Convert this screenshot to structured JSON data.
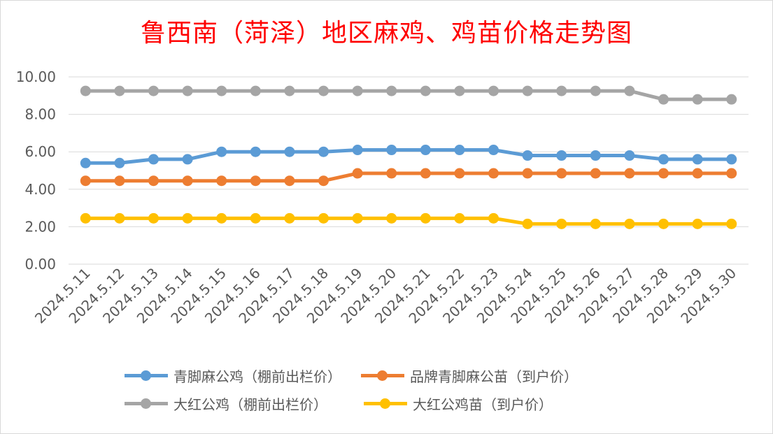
{
  "title": "鲁西南（菏泽）地区麻鸡、鸡苗价格走势图",
  "chart_data": {
    "type": "line",
    "title": "鲁西南（菏泽）地区麻鸡、鸡苗价格走势图",
    "xlabel": "",
    "ylabel": "",
    "ylim": [
      0,
      10
    ],
    "yticks": [
      "0.00",
      "2.00",
      "4.00",
      "6.00",
      "8.00",
      "10.00"
    ],
    "grid": true,
    "legend_position": "bottom",
    "x": [
      "2024.5.11",
      "2024.5.12",
      "2024.5.13",
      "2024.5.14",
      "2024.5.15",
      "2024.5.16",
      "2024.5.17",
      "2024.5.18",
      "2024.5.19",
      "2024.5.20",
      "2024.5.21",
      "2024.5.22",
      "2024.5.23",
      "2024.5.24",
      "2024.5.25",
      "2024.5.26",
      "2024.5.27",
      "2024.5.28",
      "2024.5.29",
      "2024.5.30"
    ],
    "series": [
      {
        "name": "青脚麻公鸡（棚前出栏价）",
        "color": "#5b9bd5",
        "values": [
          5.4,
          5.4,
          5.6,
          5.6,
          6.0,
          6.0,
          6.0,
          6.0,
          6.1,
          6.1,
          6.1,
          6.1,
          6.1,
          5.8,
          5.8,
          5.8,
          5.8,
          5.6,
          5.6,
          5.6
        ]
      },
      {
        "name": "品牌青脚麻公苗（到户价）",
        "color": "#ed7d31",
        "values": [
          4.45,
          4.45,
          4.45,
          4.45,
          4.45,
          4.45,
          4.45,
          4.45,
          4.85,
          4.85,
          4.85,
          4.85,
          4.85,
          4.85,
          4.85,
          4.85,
          4.85,
          4.85,
          4.85,
          4.85
        ]
      },
      {
        "name": "大红公鸡（棚前出栏价）",
        "color": "#a5a5a5",
        "values": [
          9.25,
          9.25,
          9.25,
          9.25,
          9.25,
          9.25,
          9.25,
          9.25,
          9.25,
          9.25,
          9.25,
          9.25,
          9.25,
          9.25,
          9.25,
          9.25,
          9.25,
          8.8,
          8.8,
          8.8
        ]
      },
      {
        "name": "大红公鸡苗（到户价）",
        "color": "#ffc000",
        "values": [
          2.45,
          2.45,
          2.45,
          2.45,
          2.45,
          2.45,
          2.45,
          2.45,
          2.45,
          2.45,
          2.45,
          2.45,
          2.45,
          2.15,
          2.15,
          2.15,
          2.15,
          2.15,
          2.15,
          2.15
        ]
      }
    ]
  },
  "legend": {
    "row1": [
      {
        "label": "青脚麻公鸡（棚前出栏价）",
        "color": "#5b9bd5"
      },
      {
        "label": "品牌青脚麻公苗（到户价）",
        "color": "#ed7d31"
      }
    ],
    "row2": [
      {
        "label": "大红公鸡（棚前出栏价）",
        "color": "#a5a5a5"
      },
      {
        "label": "大红公鸡苗（到户价）",
        "color": "#ffc000"
      }
    ]
  }
}
